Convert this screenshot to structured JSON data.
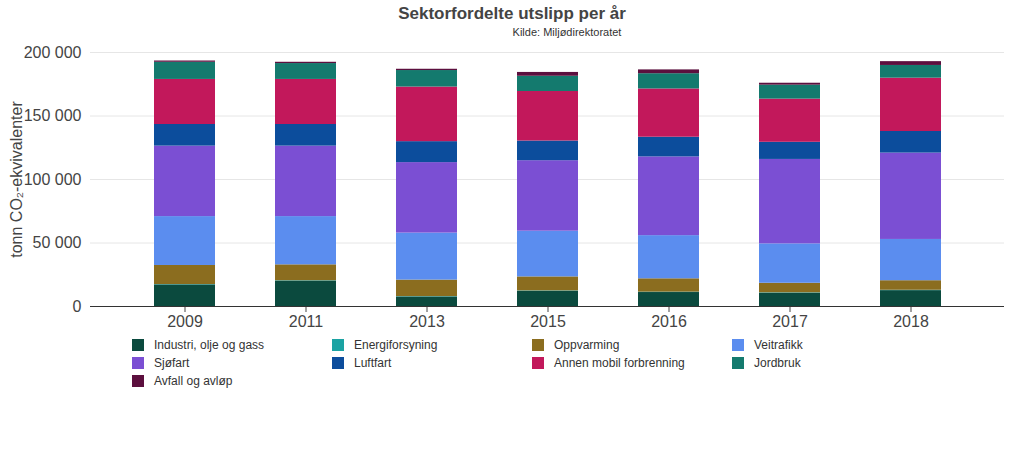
{
  "chart_data": {
    "type": "bar",
    "stacked": true,
    "title": "Sektorfordelte utslipp per år",
    "subtitle": "Kilde: Miljødirektoratet",
    "y_label": "tonn CO₂-ekvivalenter",
    "categories": [
      "2009",
      "2011",
      "2013",
      "2015",
      "2016",
      "2017",
      "2018"
    ],
    "series": [
      {
        "name": "Industri, olje og gass",
        "color": "#0b4a3e",
        "values": [
          17000,
          20000,
          7500,
          12000,
          11000,
          10500,
          12500
        ]
      },
      {
        "name": "Energiforsyning",
        "color": "#1ba3a3",
        "values": [
          300,
          300,
          300,
          300,
          300,
          300,
          300
        ]
      },
      {
        "name": "Oppvarming",
        "color": "#8b6d1f",
        "values": [
          15000,
          12500,
          13000,
          11000,
          10500,
          7500,
          7500
        ]
      },
      {
        "name": "Veitrafikk",
        "color": "#5b8def",
        "values": [
          38500,
          38000,
          37000,
          36000,
          34000,
          31000,
          32500
        ]
      },
      {
        "name": "Sjøfart",
        "color": "#7b4fd3",
        "values": [
          55500,
          55500,
          55500,
          55500,
          62000,
          66500,
          68000
        ]
      },
      {
        "name": "Luftfart",
        "color": "#0c4d9c",
        "values": [
          17000,
          17000,
          16500,
          15500,
          15500,
          13500,
          17000
        ]
      },
      {
        "name": "Annen mobil forbrenning",
        "color": "#c2185b",
        "values": [
          35500,
          35500,
          43000,
          39000,
          38000,
          34000,
          42000
        ]
      },
      {
        "name": "Jordbruk",
        "color": "#147a6e",
        "values": [
          13500,
          12500,
          13000,
          12000,
          12000,
          11000,
          10000
        ]
      },
      {
        "name": "Avfall og avløp",
        "color": "#5c0f3e",
        "values": [
          1000,
          1000,
          1000,
          3000,
          3000,
          1500,
          3000
        ]
      }
    ],
    "ylim": [
      0,
      200000
    ],
    "yticks": [
      0,
      {
        "value": 50000,
        "label": "50 000"
      },
      {
        "value": 100000,
        "label": "100 000"
      },
      {
        "value": 150000,
        "label": "150 000"
      },
      {
        "value": 200000,
        "label": "200 000"
      }
    ],
    "grid": true,
    "legend": "bottom"
  }
}
